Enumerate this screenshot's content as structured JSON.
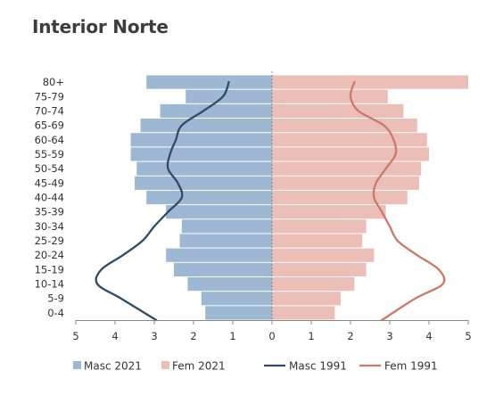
{
  "chart_data": {
    "type": "bar",
    "title": "Interior Norte",
    "xlabel": "",
    "ylabel": "",
    "xlim": [
      -5,
      5
    ],
    "categories": [
      "0-4",
      "5-9",
      "10-14",
      "15-19",
      "20-24",
      "25-29",
      "30-34",
      "35-39",
      "40-44",
      "45-49",
      "50-54",
      "55-59",
      "60-64",
      "65-69",
      "70-74",
      "75-79",
      "80+"
    ],
    "x_tick_values": [
      -5,
      -4,
      -3,
      -2,
      -1,
      0,
      1,
      2,
      3,
      4,
      5
    ],
    "x_tick_labels": [
      "5",
      "4",
      "3",
      "2",
      "1",
      "0",
      "1",
      "2",
      "3",
      "4",
      "5"
    ],
    "series": [
      {
        "name": "Masc 2021",
        "kind": "bar",
        "side": "left",
        "color": "#9db8d2",
        "values": [
          1.7,
          1.8,
          2.15,
          2.5,
          2.7,
          2.35,
          2.3,
          2.7,
          3.2,
          3.5,
          3.45,
          3.6,
          3.6,
          3.35,
          2.85,
          2.2,
          3.2
        ]
      },
      {
        "name": "Fem 2021",
        "kind": "bar",
        "side": "right",
        "color": "#ebbfb8",
        "values": [
          1.6,
          1.75,
          2.1,
          2.4,
          2.6,
          2.3,
          2.4,
          2.9,
          3.45,
          3.75,
          3.8,
          4.0,
          3.95,
          3.7,
          3.35,
          2.95,
          5.0
        ]
      },
      {
        "name": "Masc 1991",
        "kind": "line",
        "side": "left",
        "color": "#2f4b68",
        "values": [
          2.95,
          3.85,
          4.45,
          4.35,
          3.8,
          3.3,
          3.0,
          2.65,
          2.3,
          2.4,
          2.65,
          2.6,
          2.45,
          2.3,
          1.75,
          1.25,
          1.1
        ]
      },
      {
        "name": "Fem 1991",
        "kind": "line",
        "side": "right",
        "color": "#d07868",
        "values": [
          2.8,
          3.65,
          4.35,
          4.25,
          3.7,
          3.2,
          3.0,
          2.8,
          2.6,
          2.65,
          2.9,
          3.15,
          3.1,
          2.85,
          2.2,
          2.0,
          2.1
        ]
      }
    ],
    "legend_position": "bottom",
    "grid": false
  }
}
